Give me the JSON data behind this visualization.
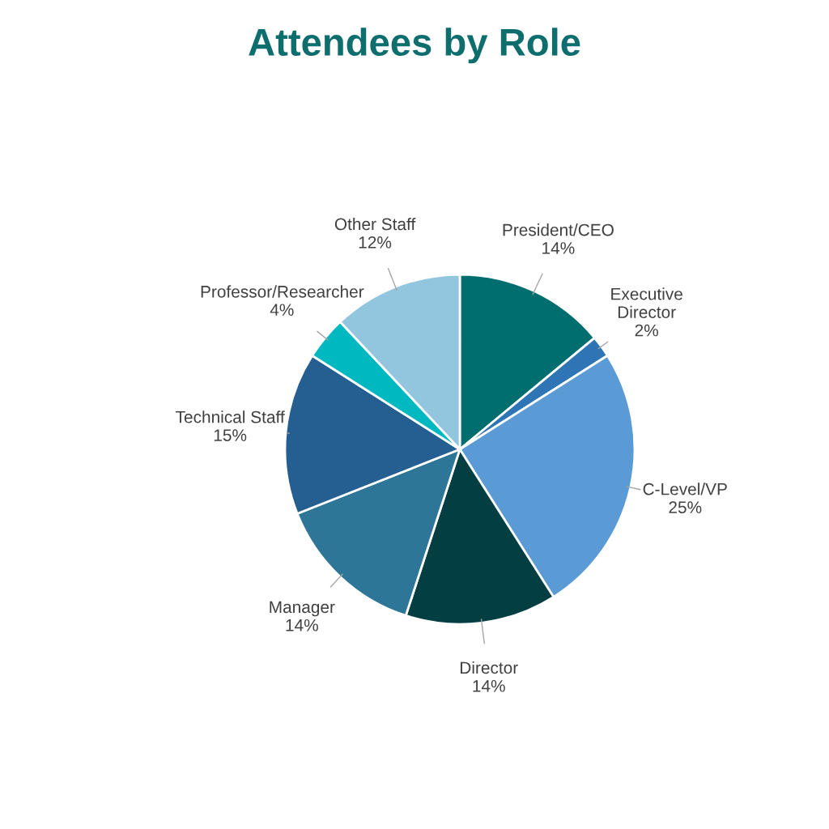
{
  "chart_data": {
    "type": "pie",
    "title": "Attendees by Role",
    "categories": [
      "President/CEO",
      "Executive\nDirector",
      "C-Level/VP",
      "Director",
      "Manager",
      "Technical Staff",
      "Professor/Researcher",
      "Other Staff"
    ],
    "values": [
      14,
      2,
      25,
      14,
      14,
      15,
      4,
      12
    ],
    "value_labels": [
      "14%",
      "2%",
      "25%",
      "14%",
      "14%",
      "15%",
      "4%",
      "12%"
    ],
    "colors": [
      "#006e6e",
      "#2e75b6",
      "#5b9bd5",
      "#033f42",
      "#2e7698",
      "#255e91",
      "#00b8c0",
      "#92c5de"
    ],
    "legend": false
  }
}
